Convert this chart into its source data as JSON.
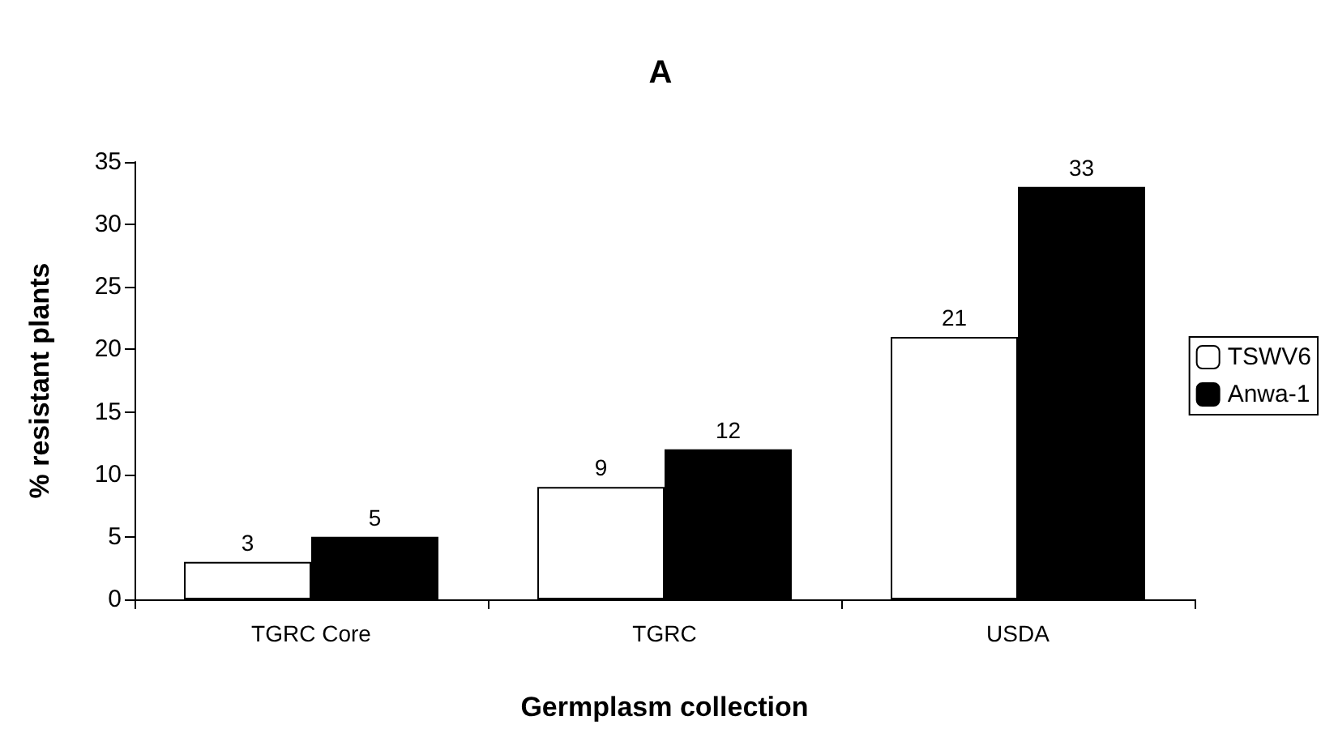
{
  "chart_data": {
    "type": "bar",
    "title": "A",
    "xlabel": "Germplasm collection",
    "ylabel": "% resistant plants",
    "categories": [
      "TGRC Core",
      "TGRC",
      "USDA"
    ],
    "series": [
      {
        "name": "TSWV6",
        "color": "#ffffff",
        "values": [
          3,
          9,
          21
        ]
      },
      {
        "name": "Anwa-1",
        "color": "#000000",
        "values": [
          5,
          12,
          33
        ]
      }
    ],
    "ylim": [
      0,
      35
    ],
    "yticks": [
      0,
      5,
      10,
      15,
      20,
      25,
      30,
      35
    ],
    "grid": false,
    "legend": "right",
    "data_labels": true
  }
}
